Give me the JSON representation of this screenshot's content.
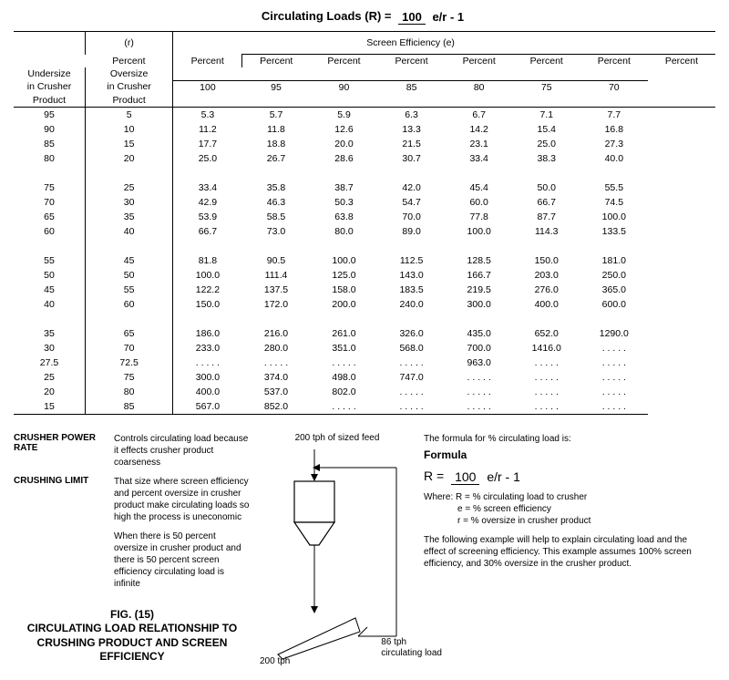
{
  "title_formula": {
    "prefix": "Circulating Loads (R) = ",
    "num": "100",
    "den": "e/r - 1"
  },
  "table": {
    "header_eff": "Screen Efficiency (e)",
    "col_undersize_l1": "Percent",
    "col_undersize_l2": "Undersize",
    "col_undersize_l3": "in Crusher",
    "col_undersize_l4": "Product",
    "col_oversize_l0": "(r)",
    "col_oversize_l1": "Percent",
    "col_oversize_l2": "Oversize",
    "col_oversize_l3": "in Crusher",
    "col_oversize_l4": "Product",
    "eff_label": "Percent",
    "eff_cols": [
      "100",
      "95",
      "90",
      "85",
      "80",
      "75",
      "70"
    ],
    "groups": [
      [
        {
          "u": "95",
          "o": "5",
          "v": [
            "5.3",
            "5.7",
            "5.9",
            "6.3",
            "6.7",
            "7.1",
            "7.7"
          ]
        },
        {
          "u": "90",
          "o": "10",
          "v": [
            "11.2",
            "11.8",
            "12.6",
            "13.3",
            "14.2",
            "15.4",
            "16.8"
          ]
        },
        {
          "u": "85",
          "o": "15",
          "v": [
            "17.7",
            "18.8",
            "20.0",
            "21.5",
            "23.1",
            "25.0",
            "27.3"
          ]
        },
        {
          "u": "80",
          "o": "20",
          "v": [
            "25.0",
            "26.7",
            "28.6",
            "30.7",
            "33.4",
            "38.3",
            "40.0"
          ]
        }
      ],
      [
        {
          "u": "75",
          "o": "25",
          "v": [
            "33.4",
            "35.8",
            "38.7",
            "42.0",
            "45.4",
            "50.0",
            "55.5"
          ]
        },
        {
          "u": "70",
          "o": "30",
          "v": [
            "42.9",
            "46.3",
            "50.3",
            "54.7",
            "60.0",
            "66.7",
            "74.5"
          ]
        },
        {
          "u": "65",
          "o": "35",
          "v": [
            "53.9",
            "58.5",
            "63.8",
            "70.0",
            "77.8",
            "87.7",
            "100.0"
          ]
        },
        {
          "u": "60",
          "o": "40",
          "v": [
            "66.7",
            "73.0",
            "80.0",
            "89.0",
            "100.0",
            "114.3",
            "133.5"
          ]
        }
      ],
      [
        {
          "u": "55",
          "o": "45",
          "v": [
            "81.8",
            "90.5",
            "100.0",
            "112.5",
            "128.5",
            "150.0",
            "181.0"
          ]
        },
        {
          "u": "50",
          "o": "50",
          "v": [
            "100.0",
            "111.4",
            "125.0",
            "143.0",
            "166.7",
            "203.0",
            "250.0"
          ]
        },
        {
          "u": "45",
          "o": "55",
          "v": [
            "122.2",
            "137.5",
            "158.0",
            "183.5",
            "219.5",
            "276.0",
            "365.0"
          ]
        },
        {
          "u": "40",
          "o": "60",
          "v": [
            "150.0",
            "172.0",
            "200.0",
            "240.0",
            "300.0",
            "400.0",
            "600.0"
          ]
        }
      ],
      [
        {
          "u": "35",
          "o": "65",
          "v": [
            "186.0",
            "216.0",
            "261.0",
            "326.0",
            "435.0",
            "652.0",
            "1290.0"
          ]
        },
        {
          "u": "30",
          "o": "70",
          "v": [
            "233.0",
            "280.0",
            "351.0",
            "568.0",
            "700.0",
            "1416.0",
            ". . . . ."
          ]
        },
        {
          "u": "27.5",
          "o": "72.5",
          "v": [
            ". . . . .",
            ". . . . .",
            ". . . . .",
            ". . . . .",
            "963.0",
            ". . . . .",
            ". . . . ."
          ]
        },
        {
          "u": "25",
          "o": "75",
          "v": [
            "300.0",
            "374.0",
            "498.0",
            "747.0",
            ". . . . .",
            ". . . . .",
            ". . . . ."
          ]
        },
        {
          "u": "20",
          "o": "80",
          "v": [
            "400.0",
            "537.0",
            "802.0",
            ". . . . .",
            ". . . . .",
            ". . . . .",
            ". . . . ."
          ]
        },
        {
          "u": "15",
          "o": "85",
          "v": [
            "567.0",
            "852.0",
            ". . . . .",
            ". . . . .",
            ". . . . .",
            ". . . . .",
            ". . . . ."
          ]
        }
      ]
    ]
  },
  "definitions": {
    "power_rate_label": "CRUSHER POWER RATE",
    "power_rate_text": "Controls circulating load because it effects crusher product coarseness",
    "crushing_limit_label": "CRUSHING LIMIT",
    "crushing_limit_text1": "That size where screen efficiency and percent oversize in crusher product make circulating loads so high the process is uneconomic",
    "crushing_limit_text2": "When there is 50 percent oversize in crusher product and there is 50 percent screen efficiency circulating load is infinite"
  },
  "figure_caption_l1": "FIG. (15)",
  "figure_caption_l2": "CIRCULATING LOAD RELATIONSHIP TO",
  "figure_caption_l3": "CRUSHING PRODUCT AND SCREEN EFFICIENCY",
  "diagram": {
    "feed_label": "200 tph of sized feed",
    "bottom_left": "200 tph",
    "circ_l1": "86 tph",
    "circ_l2": "circulating load"
  },
  "right": {
    "intro": "The formula for % circulating load is:",
    "formula_label": "Formula",
    "R_eq": "R = ",
    "num": "100",
    "den": "e/r - 1",
    "where_R": "Where: R = % circulating load to crusher",
    "where_e": "e = % screen efficiency",
    "where_r": "r = % oversize in crusher product",
    "explain": "The following example will help to explain circulating load and the effect of screening efficiency. This example assumes 100% screen efficiency, and 30% oversize in the crusher product."
  }
}
